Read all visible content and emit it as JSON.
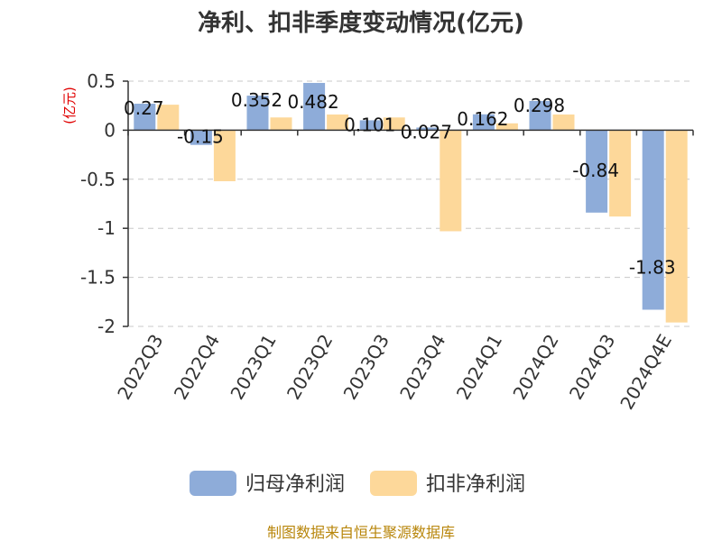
{
  "chart_data": {
    "type": "bar",
    "title": "净利、扣非季度变动情况(亿元)",
    "unit_label": "(亿元)",
    "categories": [
      "2022Q3",
      "2022Q4",
      "2023Q1",
      "2023Q2",
      "2023Q3",
      "2023Q4",
      "2024Q1",
      "2024Q2",
      "2024Q3",
      "2024Q4E"
    ],
    "series": [
      {
        "name": "归母净利润",
        "color": "#8eacd9",
        "values": [
          0.27,
          -0.15,
          0.352,
          0.482,
          0.101,
          0.027,
          0.162,
          0.298,
          -0.84,
          -1.83
        ],
        "labels": [
          "0.27",
          "-0.15",
          "0.352",
          "0.482",
          "0.101",
          "0.027",
          "0.162",
          "0.298",
          "-0.84",
          "-1.83"
        ]
      },
      {
        "name": "扣非净利润",
        "color": "#fdd89a",
        "values": [
          0.26,
          -0.52,
          0.13,
          0.16,
          0.13,
          -1.03,
          0.07,
          0.16,
          -0.88,
          -1.96
        ]
      }
    ],
    "yticks": [
      "0.5",
      "0",
      "-0.5",
      "-1",
      "-1.5",
      "-2"
    ],
    "ylim": [
      -2,
      0.5
    ],
    "grid": true,
    "legend_position": "bottom"
  },
  "footer": {
    "source": "制图数据来自恒生聚源数据库"
  }
}
